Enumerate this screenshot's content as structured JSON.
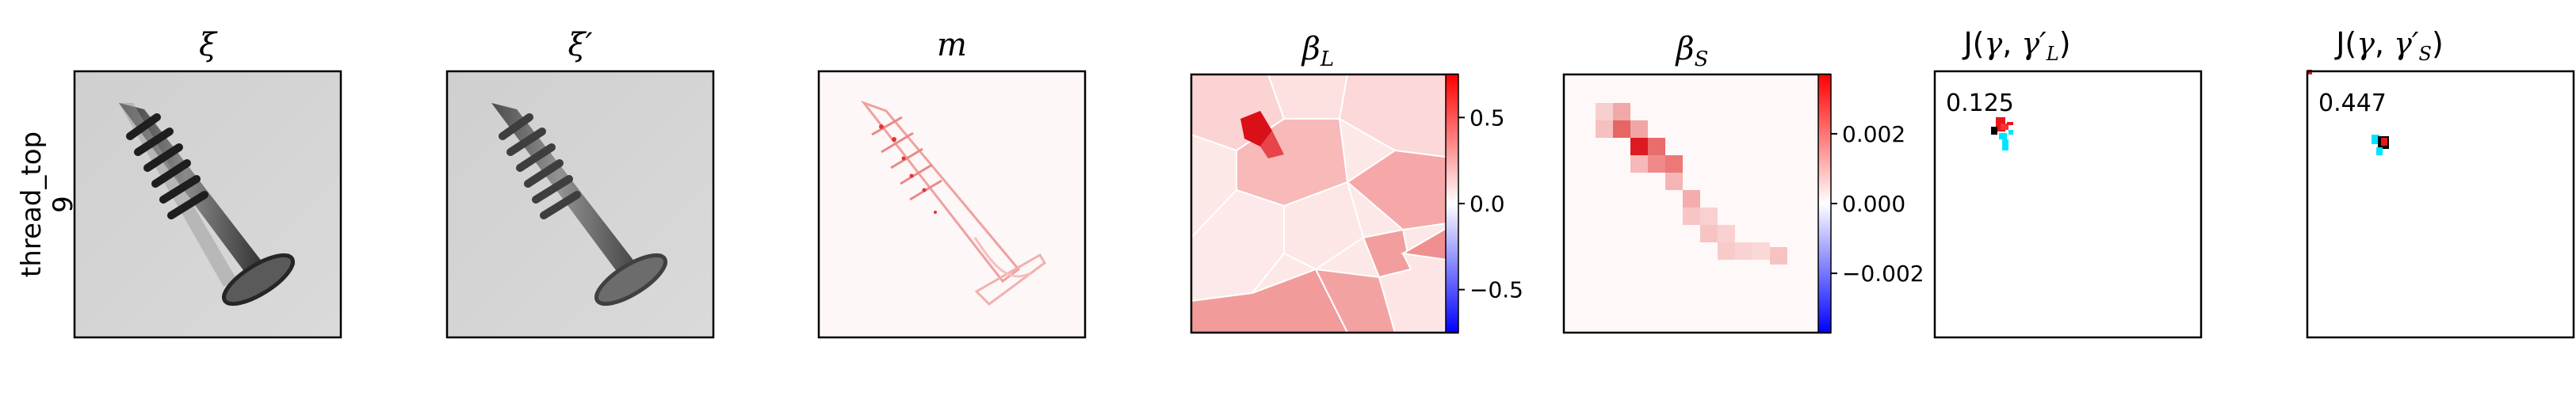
{
  "row_label": {
    "line1": "thread_top",
    "line2": "9"
  },
  "panels": [
    {
      "id": "xi",
      "title": "ξ"
    },
    {
      "id": "xi_prime",
      "title": "ξ′"
    },
    {
      "id": "m",
      "title": "m"
    },
    {
      "id": "beta_L",
      "title": "βL"
    },
    {
      "id": "beta_S",
      "title": "βS"
    },
    {
      "id": "J_L",
      "title": "J(γ, γ′L)",
      "score": "0.125"
    },
    {
      "id": "J_S",
      "title": "J(γ, γ′S)",
      "score": "0.447"
    }
  ],
  "colorbars": {
    "beta_L": {
      "ticks": [
        "0.5",
        "0.0",
        "−0.5"
      ],
      "range": [
        -0.75,
        0.75
      ],
      "tick_values": [
        0.5,
        0.0,
        -0.5
      ]
    },
    "beta_S": {
      "ticks": [
        "0.002",
        "0.000",
        "−0.002"
      ],
      "range": [
        -0.0037,
        0.0037
      ],
      "tick_values": [
        0.002,
        0.0,
        -0.002
      ]
    }
  },
  "colors": {
    "positive": "#e8161b",
    "negative": "#1414e0",
    "neutral": "#ffffff",
    "cyan": "#00e5ff",
    "screw_background": "#d6d6d6"
  }
}
